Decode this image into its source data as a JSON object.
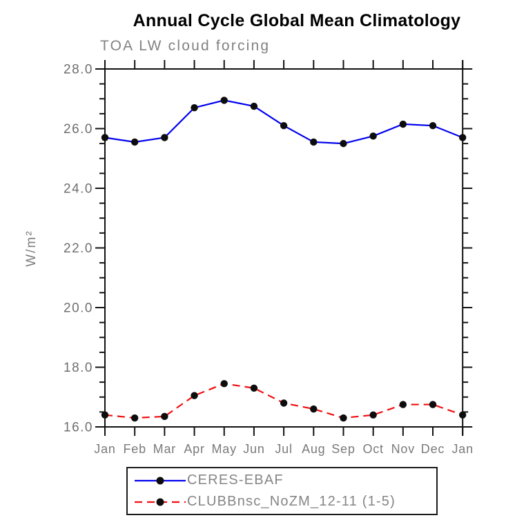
{
  "chart_data": {
    "type": "line",
    "title": "Annual Cycle Global Mean Climatology",
    "subtitle": "TOA LW cloud forcing",
    "xlabel": "",
    "ylabel": "W/m²",
    "categories": [
      "Jan",
      "Feb",
      "Mar",
      "Apr",
      "May",
      "Jun",
      "Jul",
      "Aug",
      "Sep",
      "Oct",
      "Nov",
      "Dec",
      "Jan"
    ],
    "series": [
      {
        "name": "CERES-EBAF",
        "color": "#0000ee",
        "line_style": "solid",
        "marker": "filled-circle",
        "marker_color": "#0d0d0d",
        "values": [
          25.7,
          25.55,
          25.7,
          26.7,
          26.95,
          26.75,
          26.1,
          25.55,
          25.5,
          25.75,
          26.15,
          26.1,
          25.7
        ]
      },
      {
        "name": "CLUBBnsc_NoZM_12-11 (1-5)",
        "color": "#f10e10",
        "line_style": "dashed",
        "marker": "filled-circle",
        "marker_color": "#0d0d0d",
        "values": [
          16.4,
          16.3,
          16.35,
          17.05,
          17.45,
          17.3,
          16.8,
          16.6,
          16.3,
          16.4,
          16.75,
          16.75,
          16.4
        ]
      }
    ],
    "ylim": [
      16.0,
      28.0
    ],
    "y_major_ticks": [
      16.0,
      18.0,
      20.0,
      22.0,
      24.0,
      26.0,
      28.0
    ],
    "y_tick_labels": [
      "16.0",
      "18.0",
      "20.0",
      "22.0",
      "24.0",
      "26.0",
      "28.0"
    ],
    "y_minor_step": 0.5,
    "grid": false,
    "axis_color": "#111111",
    "tick_label_color": "#6e6e6e",
    "legend_position": "bottom"
  },
  "legend": {
    "entries": [
      {
        "label": "CERES-EBAF",
        "color": "#0000ee",
        "style": "solid"
      },
      {
        "label": "CLUBBnsc_NoZM_12-11 (1-5)",
        "color": "#f10e10",
        "style": "dashed"
      }
    ]
  }
}
